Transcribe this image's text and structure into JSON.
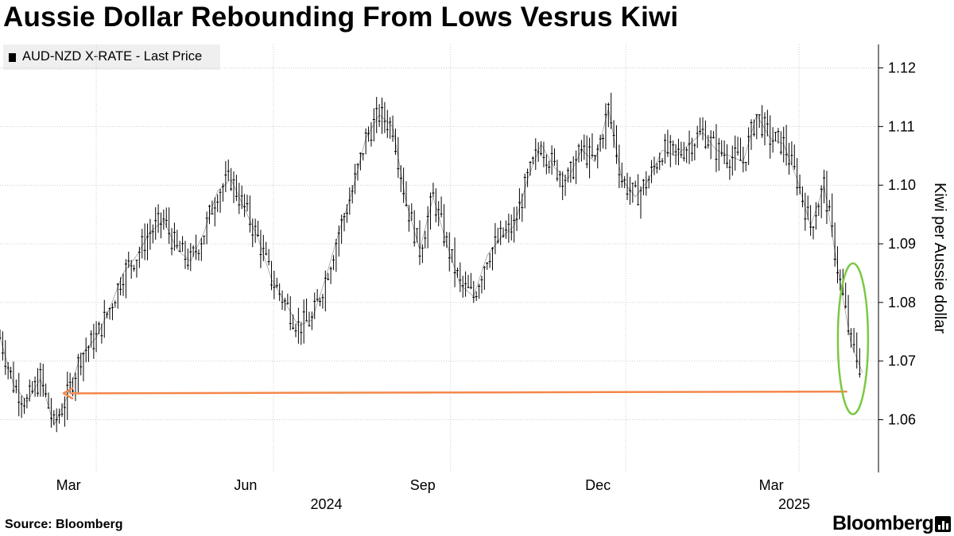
{
  "title": "Aussie Dollar Rebounding From Lows Vesrus Kiwi",
  "legend_label": "AUD-NZD X-RATE - Last Price",
  "source": "Source: Bloomberg",
  "brand": "Bloomberg",
  "colors": {
    "candles": "#000000",
    "arrow": "#f4874b",
    "ellipse": "#7ac943",
    "grid": "#cccccc",
    "legend_bg": "#efefef"
  },
  "chart_data": {
    "type": "line",
    "title": "Aussie Dollar Rebounding From Lows Vesrus Kiwi",
    "ylabel": "Kiwi per Aussie dollar",
    "ylim": [
      1.051,
      1.124
    ],
    "yticks": [
      1.06,
      1.07,
      1.08,
      1.09,
      1.1,
      1.11,
      1.12
    ],
    "ytick_labels": [
      "1.06",
      "1.07",
      "1.08",
      "1.09",
      "1.10",
      "1.11",
      "1.12"
    ],
    "x_range": [
      "2024-01-11",
      "2025-04-03"
    ],
    "x_ticks": [
      {
        "date": "2024-03-01",
        "label": "Mar"
      },
      {
        "date": "2024-06-01",
        "label": "Jun"
      },
      {
        "date": "2024-09-01",
        "label": "Sep"
      },
      {
        "date": "2024-12-01",
        "label": "Dec"
      },
      {
        "date": "2025-03-01",
        "label": "Mar"
      }
    ],
    "year_labels": [
      {
        "date": "2024-07-15",
        "label": "2024"
      },
      {
        "date": "2025-03-15",
        "label": "2025"
      }
    ],
    "grid": true,
    "legend": "top-left",
    "series": [
      {
        "name": "AUD-NZD X-RATE - Last Price",
        "points": [
          {
            "date": "2024-01-11",
            "value": 1.074
          },
          {
            "date": "2024-01-18",
            "value": 1.066
          },
          {
            "date": "2024-01-25",
            "value": 1.063
          },
          {
            "date": "2024-02-01",
            "value": 1.067
          },
          {
            "date": "2024-02-08",
            "value": 1.059
          },
          {
            "date": "2024-02-15",
            "value": 1.064
          },
          {
            "date": "2024-02-22",
            "value": 1.071
          },
          {
            "date": "2024-03-01",
            "value": 1.074
          },
          {
            "date": "2024-03-08",
            "value": 1.079
          },
          {
            "date": "2024-03-15",
            "value": 1.085
          },
          {
            "date": "2024-03-22",
            "value": 1.088
          },
          {
            "date": "2024-03-29",
            "value": 1.092
          },
          {
            "date": "2024-04-05",
            "value": 1.094
          },
          {
            "date": "2024-04-12",
            "value": 1.089
          },
          {
            "date": "2024-04-19",
            "value": 1.087
          },
          {
            "date": "2024-04-26",
            "value": 1.092
          },
          {
            "date": "2024-05-03",
            "value": 1.099
          },
          {
            "date": "2024-05-10",
            "value": 1.101
          },
          {
            "date": "2024-05-17",
            "value": 1.096
          },
          {
            "date": "2024-05-24",
            "value": 1.091
          },
          {
            "date": "2024-05-31",
            "value": 1.084
          },
          {
            "date": "2024-06-07",
            "value": 1.08
          },
          {
            "date": "2024-06-14",
            "value": 1.076
          },
          {
            "date": "2024-06-21",
            "value": 1.077
          },
          {
            "date": "2024-06-28",
            "value": 1.084
          },
          {
            "date": "2024-07-05",
            "value": 1.092
          },
          {
            "date": "2024-07-12",
            "value": 1.099
          },
          {
            "date": "2024-07-19",
            "value": 1.108
          },
          {
            "date": "2024-07-26",
            "value": 1.112
          },
          {
            "date": "2024-08-02",
            "value": 1.11
          },
          {
            "date": "2024-08-09",
            "value": 1.097
          },
          {
            "date": "2024-08-16",
            "value": 1.089
          },
          {
            "date": "2024-08-23",
            "value": 1.098
          },
          {
            "date": "2024-08-30",
            "value": 1.09
          },
          {
            "date": "2024-09-06",
            "value": 1.083
          },
          {
            "date": "2024-09-13",
            "value": 1.081
          },
          {
            "date": "2024-09-20",
            "value": 1.088
          },
          {
            "date": "2024-09-27",
            "value": 1.091
          },
          {
            "date": "2024-10-04",
            "value": 1.093
          },
          {
            "date": "2024-10-11",
            "value": 1.101
          },
          {
            "date": "2024-10-18",
            "value": 1.107
          },
          {
            "date": "2024-10-25",
            "value": 1.103
          },
          {
            "date": "2024-11-01",
            "value": 1.101
          },
          {
            "date": "2024-11-08",
            "value": 1.106
          },
          {
            "date": "2024-11-15",
            "value": 1.104
          },
          {
            "date": "2024-11-22",
            "value": 1.113
          },
          {
            "date": "2024-11-29",
            "value": 1.101
          },
          {
            "date": "2024-12-06",
            "value": 1.098
          },
          {
            "date": "2024-12-13",
            "value": 1.101
          },
          {
            "date": "2024-12-20",
            "value": 1.106
          },
          {
            "date": "2024-12-27",
            "value": 1.105
          },
          {
            "date": "2025-01-03",
            "value": 1.107
          },
          {
            "date": "2025-01-10",
            "value": 1.109
          },
          {
            "date": "2025-01-17",
            "value": 1.106
          },
          {
            "date": "2025-01-24",
            "value": 1.105
          },
          {
            "date": "2025-01-31",
            "value": 1.104
          },
          {
            "date": "2025-02-07",
            "value": 1.112
          },
          {
            "date": "2025-02-14",
            "value": 1.108
          },
          {
            "date": "2025-02-21",
            "value": 1.107
          },
          {
            "date": "2025-02-28",
            "value": 1.101
          },
          {
            "date": "2025-03-07",
            "value": 1.093
          },
          {
            "date": "2025-03-14",
            "value": 1.1
          },
          {
            "date": "2025-03-21",
            "value": 1.086
          },
          {
            "date": "2025-03-28",
            "value": 1.073
          },
          {
            "date": "2025-04-03",
            "value": 1.068
          }
        ]
      }
    ],
    "annotations": [
      {
        "type": "arrow",
        "from": {
          "date": "2025-03-26",
          "value": 1.0648
        },
        "to": {
          "date": "2024-02-13",
          "value": 1.0645
        }
      },
      {
        "type": "ellipse",
        "center": {
          "date": "2025-03-29",
          "value": 1.0738
        },
        "label": ""
      }
    ]
  }
}
